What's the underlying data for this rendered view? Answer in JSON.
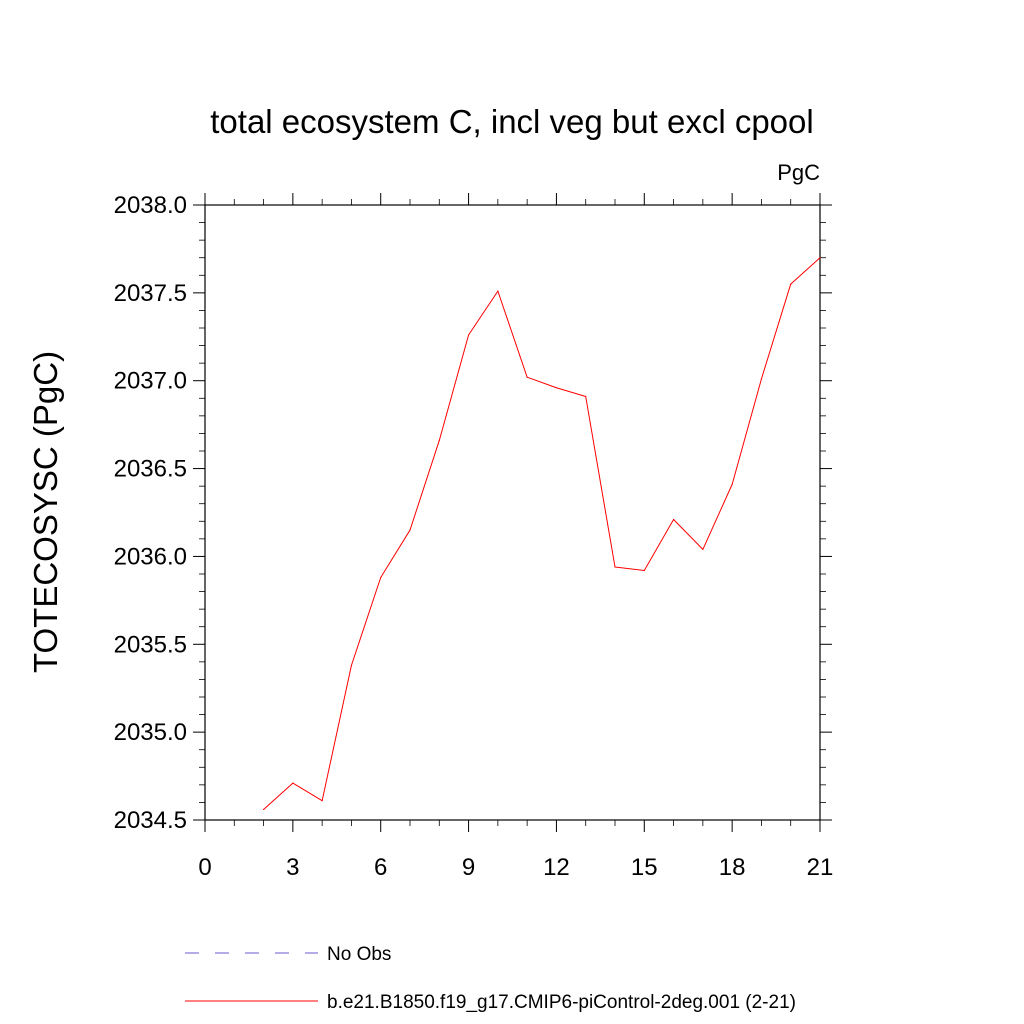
{
  "chart_data": {
    "type": "line",
    "title": "total ecosystem C, incl veg but excl cpool",
    "units_label": "PgC",
    "xlabel": "",
    "ylabel": "TOTECOSYSC  (PgC)",
    "xlim": [
      0,
      21
    ],
    "ylim": [
      2034.5,
      2038.0
    ],
    "x_ticks": [
      0,
      3,
      6,
      9,
      12,
      15,
      18,
      21
    ],
    "x_tick_labels": [
      "0",
      "3",
      "6",
      "9",
      "12",
      "15",
      "18",
      "21"
    ],
    "y_ticks": [
      2034.5,
      2035.0,
      2035.5,
      2036.0,
      2036.5,
      2037.0,
      2037.5,
      2038.0
    ],
    "y_tick_labels": [
      "2034.5",
      "2035.0",
      "2035.5",
      "2036.0",
      "2036.5",
      "2037.0",
      "2037.5",
      "2038.0"
    ],
    "x_minor_step": 1,
    "y_minor_step": 0.1,
    "series": [
      {
        "name": "b.e21.B1850.f19_g17.CMIP6-piControl-2deg.001 (2-21)",
        "color": "#ff0000",
        "style": "solid",
        "x": [
          2,
          3,
          4,
          5,
          6,
          7,
          8,
          9,
          10,
          11,
          12,
          13,
          14,
          15,
          16,
          17,
          18,
          19,
          20,
          21
        ],
        "y": [
          2034.56,
          2034.71,
          2034.61,
          2035.38,
          2035.88,
          2036.15,
          2036.66,
          2037.26,
          2037.51,
          2037.02,
          2036.96,
          2036.91,
          2035.94,
          2035.92,
          2036.21,
          2036.04,
          2036.41,
          2037.01,
          2037.55,
          2037.7
        ]
      }
    ],
    "legend": {
      "placement": "bottom",
      "entries": [
        {
          "label": "No Obs",
          "color": "#6a5acd",
          "style": "dashed"
        },
        {
          "label": "b.e21.B1850.f19_g17.CMIP6-piControl-2deg.001 (2-21)",
          "color": "#ff0000",
          "style": "solid"
        }
      ]
    }
  }
}
